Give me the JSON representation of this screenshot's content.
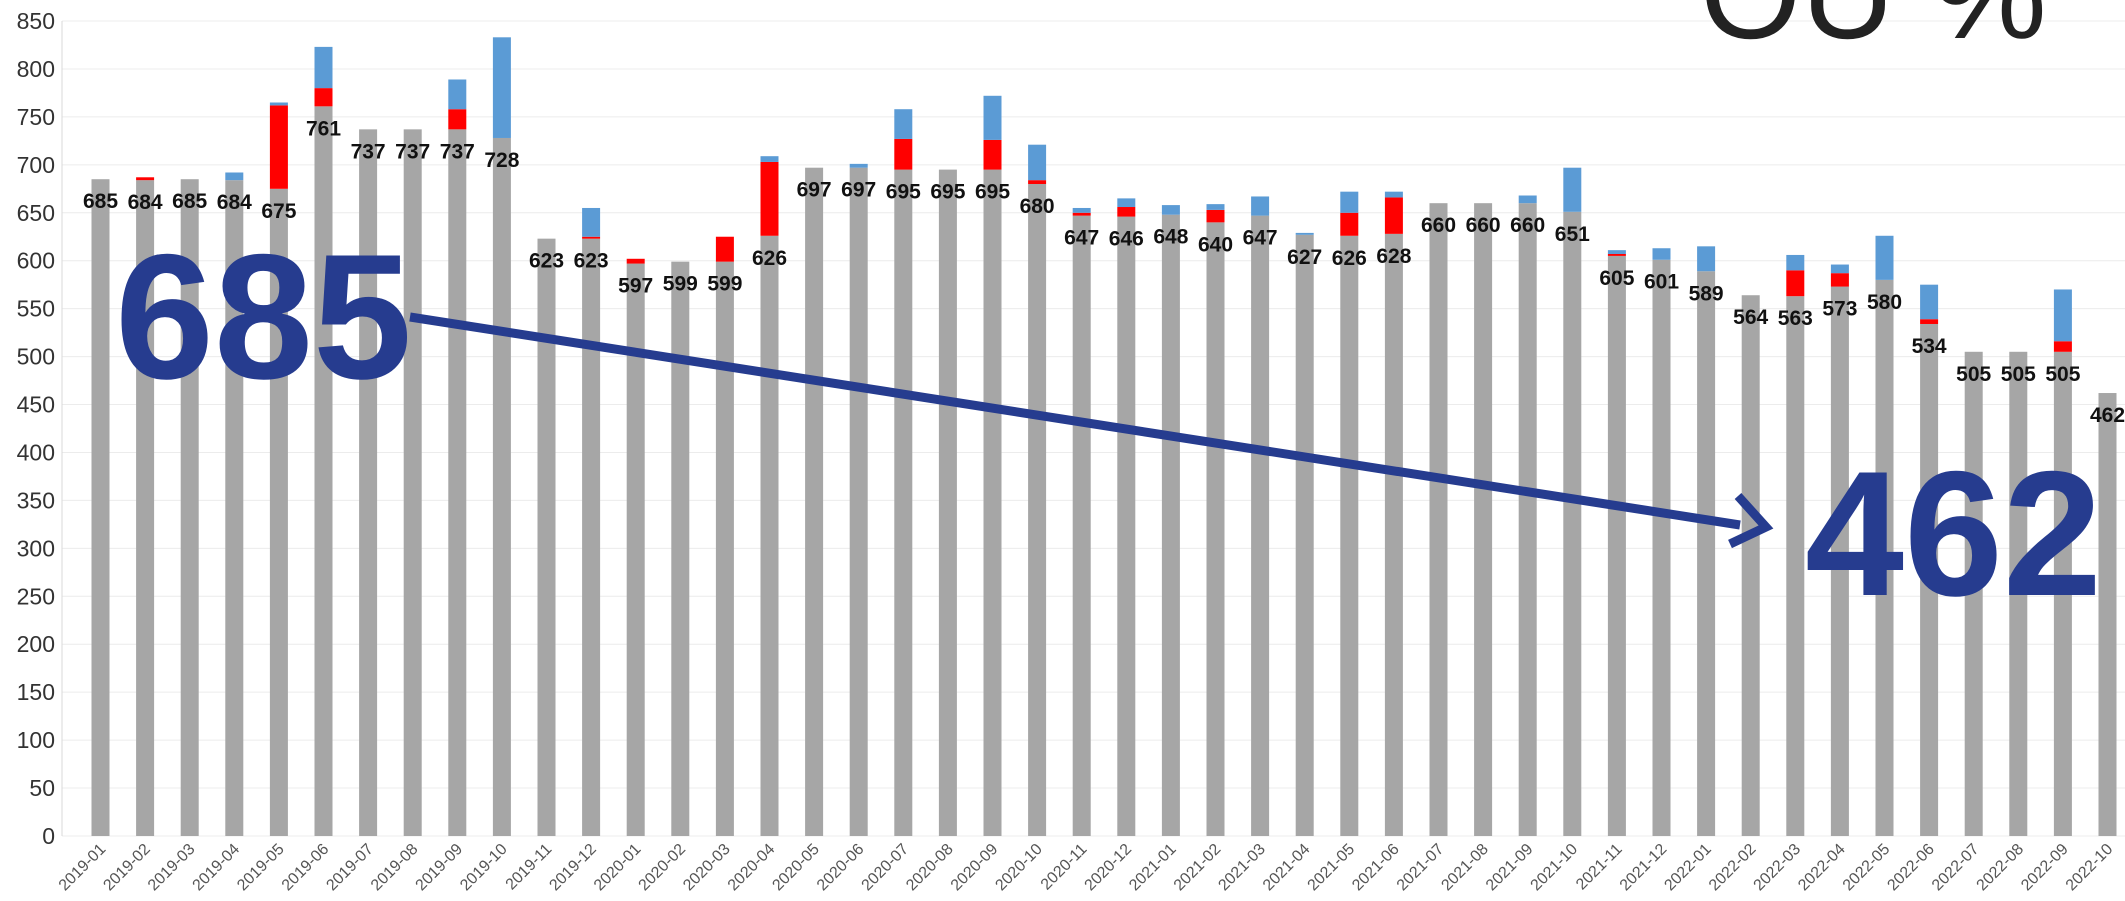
{
  "page": {
    "title": "OU %"
  },
  "callouts": {
    "start": "685",
    "end": "462"
  },
  "chart_data": {
    "type": "bar",
    "stacked": true,
    "ylim": [
      0,
      850
    ],
    "ystep": 50,
    "grid": true,
    "colors": [
      "#a6a6a6",
      "#ff0000",
      "#5b9bd5",
      "#263c8f"
    ],
    "categories": [
      "2019-01",
      "2019-02",
      "2019-03",
      "2019-04",
      "2019-05",
      "2019-06",
      "2019-07",
      "2019-08",
      "2019-09",
      "2019-10",
      "2019-11",
      "2019-12",
      "2020-01",
      "2020-02",
      "2020-03",
      "2020-04",
      "2020-05",
      "2020-06",
      "2020-07",
      "2020-08",
      "2020-09",
      "2020-10",
      "2020-11",
      "2020-12",
      "2021-01",
      "2021-02",
      "2021-03",
      "2021-04",
      "2021-05",
      "2021-06",
      "2021-07",
      "2021-08",
      "2021-09",
      "2021-10",
      "2021-11",
      "2021-12",
      "2022-01",
      "2022-02",
      "2022-03",
      "2022-04",
      "2022-05",
      "2022-06",
      "2022-07",
      "2022-08",
      "2022-09",
      "2022-10"
    ],
    "series": [
      {
        "values": [
          685,
          684,
          685,
          684,
          675,
          761,
          737,
          737,
          737,
          728,
          623,
          623,
          597,
          599,
          599,
          626,
          697,
          697,
          695,
          695,
          695,
          680,
          647,
          646,
          648,
          640,
          647,
          627,
          626,
          628,
          660,
          660,
          660,
          651,
          605,
          601,
          589,
          564,
          563,
          573,
          580,
          534,
          505,
          505,
          505,
          462
        ]
      },
      {
        "values": [
          0,
          3,
          0,
          0,
          87,
          19,
          0,
          0,
          21,
          0,
          0,
          2,
          5,
          0,
          26,
          77,
          0,
          0,
          32,
          0,
          31,
          4,
          3,
          10,
          0,
          13,
          0,
          0,
          24,
          38,
          0,
          0,
          0,
          0,
          2,
          0,
          0,
          0,
          27,
          14,
          0,
          5,
          0,
          0,
          11,
          0
        ]
      },
      {
        "values": [
          0,
          0,
          0,
          8,
          3,
          43,
          0,
          0,
          31,
          105,
          0,
          30,
          0,
          0,
          0,
          6,
          0,
          4,
          31,
          0,
          46,
          37,
          5,
          9,
          10,
          6,
          20,
          2,
          22,
          6,
          0,
          0,
          8,
          46,
          4,
          12,
          26,
          0,
          16,
          9,
          46,
          36,
          0,
          0,
          54,
          0
        ]
      }
    ]
  }
}
